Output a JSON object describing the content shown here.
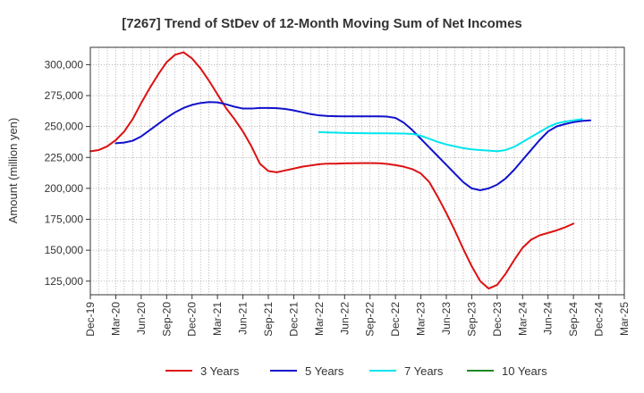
{
  "chart_data": {
    "type": "line",
    "title": "[7267]  Trend of StDev of 12-Month Moving Sum of Net Incomes",
    "xlabel": "",
    "ylabel": "Amount (million yen)",
    "x_tick_labels": [
      "Dec-19",
      "Mar-20",
      "Jun-20",
      "Sep-20",
      "Dec-20",
      "Mar-21",
      "Jun-21",
      "Sep-21",
      "Dec-21",
      "Mar-22",
      "Jun-22",
      "Sep-22",
      "Dec-22",
      "Mar-23",
      "Jun-23",
      "Sep-23",
      "Dec-23",
      "Mar-24",
      "Jun-24",
      "Sep-24",
      "Dec-24",
      "Mar-25"
    ],
    "y_ticks": [
      125000,
      150000,
      175000,
      200000,
      225000,
      250000,
      275000,
      300000
    ],
    "y_tick_labels": [
      "125,000",
      "150,000",
      "175,000",
      "200,000",
      "225,000",
      "250,000",
      "275,000",
      "300,000"
    ],
    "ylim": [
      114000,
      314000
    ],
    "grid": true,
    "legend_position": "bottom",
    "series": [
      {
        "name": "3 Years",
        "color": "#dd1111",
        "start": "Dec-19",
        "values": [
          230000,
          231000,
          234000,
          239000,
          246000,
          256000,
          269000,
          281000,
          292000,
          302000,
          308000,
          310000,
          305000,
          297000,
          287000,
          276000,
          265000,
          256000,
          246000,
          234000,
          220000,
          214000,
          213000,
          214500,
          216000,
          217500,
          218500,
          219500,
          220000,
          220000,
          220200,
          220300,
          220400,
          220400,
          220300,
          219800,
          218800,
          217500,
          215500,
          212000,
          205000,
          193000,
          180000,
          166000,
          151000,
          137000,
          125000,
          119000,
          122000,
          131000,
          142000,
          152000,
          158500,
          162000,
          164000,
          166000,
          168500,
          171500
        ]
      },
      {
        "name": "5 Years",
        "color": "#1111cc",
        "start": "Mar-20",
        "values": [
          236500,
          237000,
          238500,
          242000,
          247000,
          252000,
          257000,
          261500,
          265000,
          267500,
          269000,
          269800,
          269500,
          268000,
          266000,
          264500,
          264500,
          265000,
          265000,
          264800,
          264200,
          263000,
          261500,
          260000,
          259000,
          258500,
          258300,
          258200,
          258200,
          258200,
          258200,
          258200,
          258000,
          257000,
          253000,
          247000,
          240000,
          233000,
          226000,
          219000,
          212000,
          205000,
          200000,
          198500,
          200000,
          203000,
          208000,
          215000,
          223000,
          231000,
          239000,
          246000,
          250000,
          252000,
          253500,
          254500,
          255000
        ]
      },
      {
        "name": "7 Years",
        "color": "#00e5ee",
        "start": "Mar-22",
        "values": [
          245500,
          245200,
          245000,
          244800,
          244700,
          244600,
          244500,
          244500,
          244500,
          244400,
          244300,
          244000,
          242500,
          240000,
          237500,
          235500,
          234000,
          232500,
          231500,
          231000,
          230500,
          230000,
          231000,
          233500,
          237500,
          241500,
          245500,
          249500,
          252500,
          254000,
          255000,
          256000
        ]
      },
      {
        "name": "10 Years",
        "color": "#228822",
        "start": "Dec-24",
        "values": []
      }
    ]
  }
}
